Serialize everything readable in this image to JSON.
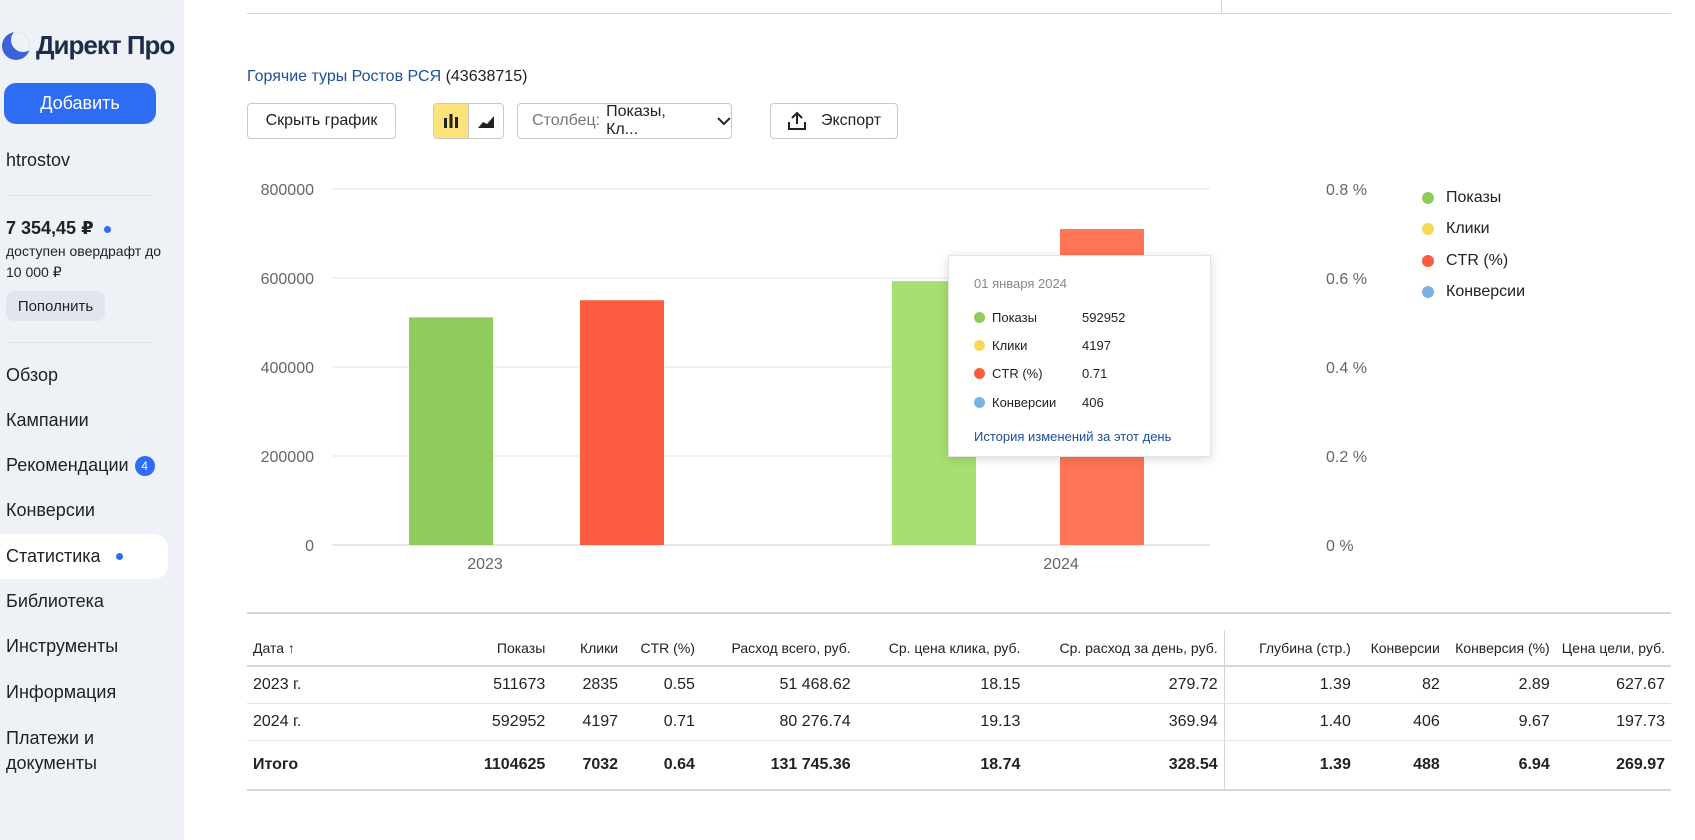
{
  "sidebar": {
    "logo_text": "Директ Про",
    "add_button": "Добавить",
    "username": "htrostov",
    "balance": "7 354,45 ₽",
    "overdraft": "доступен овердрафт до 10 000 ₽",
    "topup_button": "Пополнить",
    "nav": [
      {
        "label": "Обзор"
      },
      {
        "label": "Кампании"
      },
      {
        "label": "Рекомендации",
        "badge": "4"
      },
      {
        "label": "Конверсии"
      },
      {
        "label": "Статистика"
      },
      {
        "label": "Библиотека"
      },
      {
        "label": "Инструменты"
      },
      {
        "label": "Информация"
      },
      {
        "label": "Платежи и документы"
      }
    ]
  },
  "main": {
    "campaign_name": "Горячие туры Ростов РСЯ",
    "campaign_id": "(43638715)",
    "toolbar": {
      "hide_chart": "Скрыть график",
      "column_prefix": "Столбец:",
      "column_value": "Показы, Кл...",
      "export": "Экспорт"
    }
  },
  "colors": {
    "shows": "#8fcb5d",
    "clicks": "#f5d95a",
    "ctr": "#fb5b3f",
    "conversions": "#79b3e3",
    "accent": "#2e6cf5"
  },
  "chart_data": {
    "type": "bar",
    "categories": [
      "2023",
      "2024"
    ],
    "series": [
      {
        "name": "Показы",
        "axis": "left",
        "values": [
          511673,
          592952
        ]
      },
      {
        "name": "CTR (%)",
        "axis": "right",
        "values": [
          0.55,
          0.71
        ]
      }
    ],
    "legend": [
      "Показы",
      "Клики",
      "CTR (%)",
      "Конверсии"
    ],
    "left_axis": {
      "ylim": [
        0,
        800000
      ],
      "ticks": [
        "800000",
        "600000",
        "400000",
        "200000",
        "0"
      ]
    },
    "right_axis": {
      "ylim": [
        0,
        0.8
      ],
      "ticks": [
        "0.8 %",
        "0.6 %",
        "0.4 %",
        "0.2 %",
        "0 %"
      ]
    },
    "grid": true,
    "legend_position": "right"
  },
  "tooltip": {
    "date": "01 января 2024",
    "rows": [
      {
        "label": "Показы",
        "value": "592952"
      },
      {
        "label": "Клики",
        "value": "4197"
      },
      {
        "label": "CTR (%)",
        "value": "0.71"
      },
      {
        "label": "Конверсии",
        "value": "406"
      }
    ],
    "link": "История изменений за этот день"
  },
  "table": {
    "headers": [
      "Дата ↑",
      "Показы",
      "Клики",
      "CTR (%)",
      "Расход всего, руб.",
      "Ср. цена клика, руб.",
      "Ср. расход за день, руб.",
      "Глубина (стр.)",
      "Конверсии",
      "Конверсия (%)",
      "Цена цели, руб."
    ],
    "rows": [
      [
        "2023 г.",
        "511673",
        "2835",
        "0.55",
        "51 468.62",
        "18.15",
        "279.72",
        "1.39",
        "82",
        "2.89",
        "627.67"
      ],
      [
        "2024 г.",
        "592952",
        "4197",
        "0.71",
        "80 276.74",
        "19.13",
        "369.94",
        "1.40",
        "406",
        "9.67",
        "197.73"
      ]
    ],
    "total": [
      "Итого",
      "1104625",
      "7032",
      "0.64",
      "131 745.36",
      "18.74",
      "328.54",
      "1.39",
      "488",
      "6.94",
      "269.97"
    ]
  }
}
